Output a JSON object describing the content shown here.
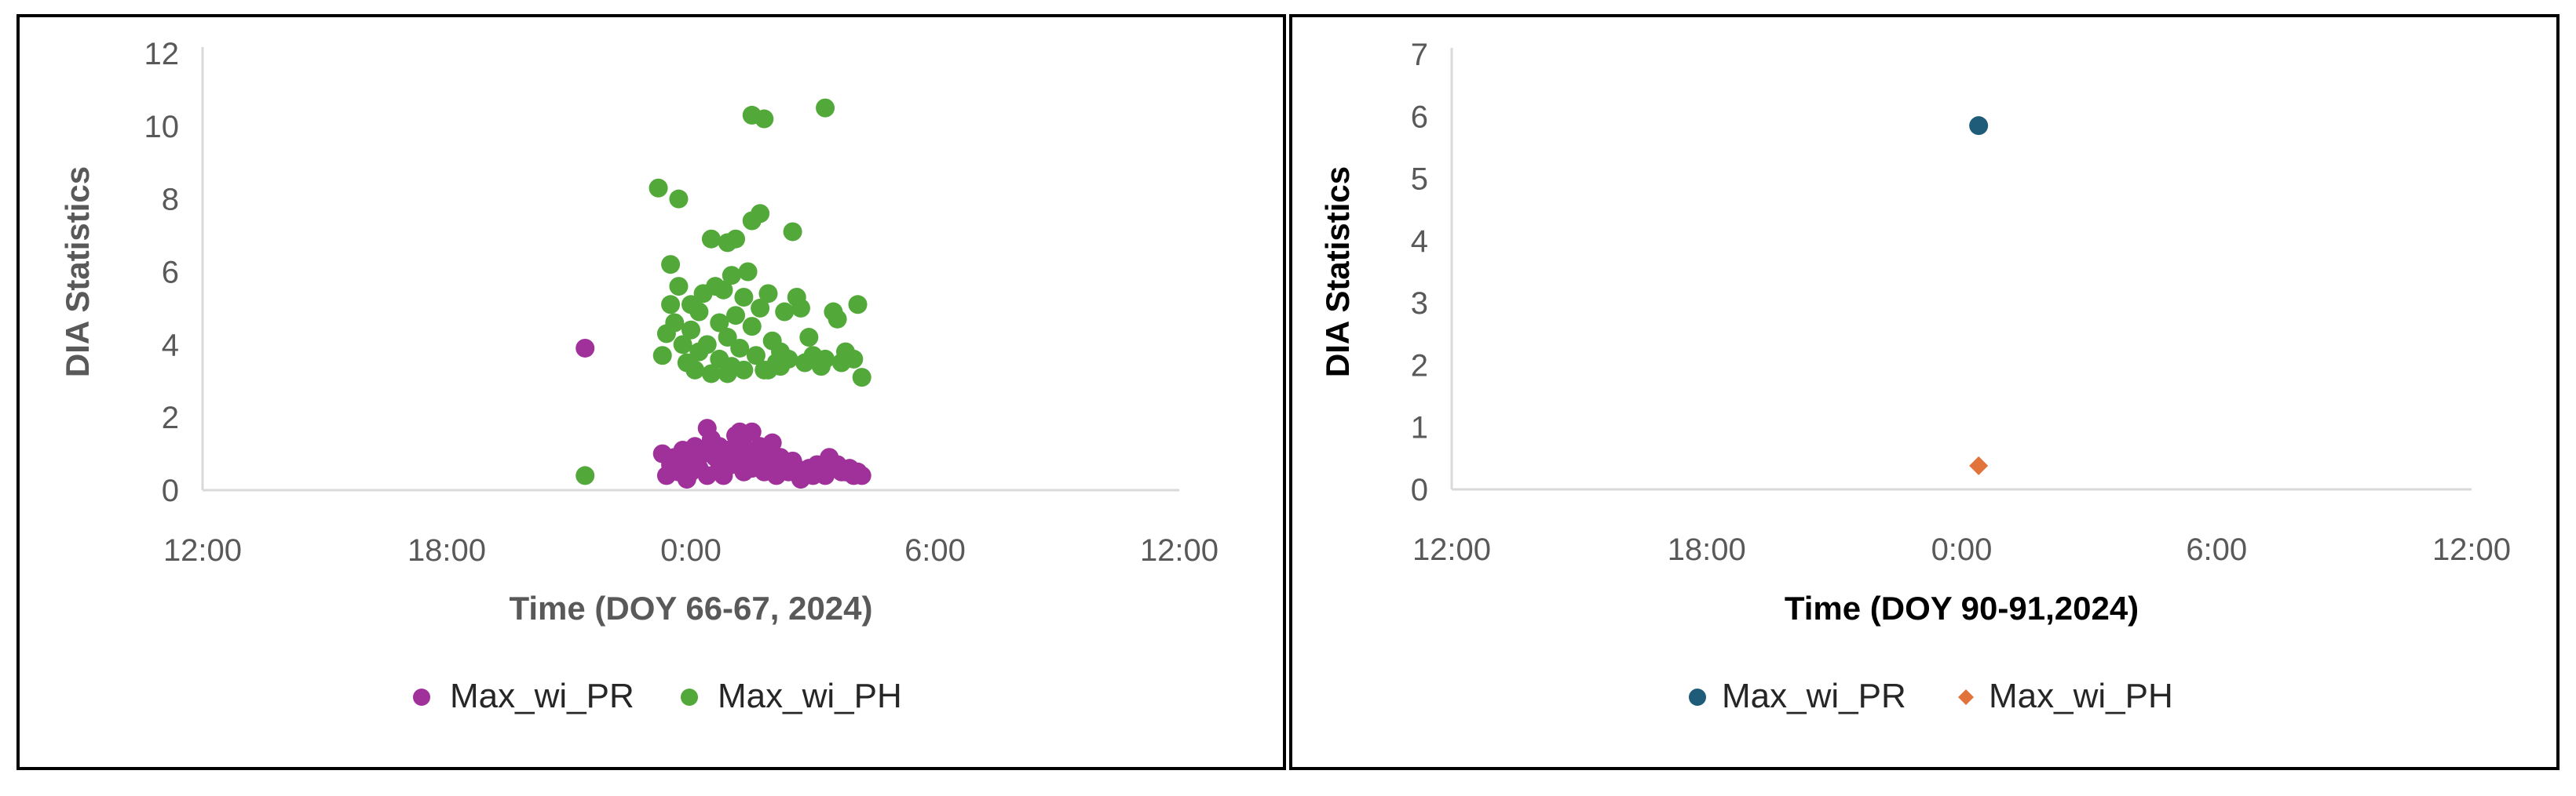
{
  "chart_data": [
    {
      "type": "scatter",
      "title": "",
      "xlabel": "Time (DOY 66-67, 2024)",
      "ylabel": "DIA Statistics",
      "x_unit": "hours relative to 0:00",
      "xlim": [
        -12,
        12
      ],
      "ylim": [
        0,
        12
      ],
      "x_ticks": [
        -12,
        -6,
        0,
        6,
        12
      ],
      "x_tick_labels": [
        "12:00",
        "18:00",
        "0:00",
        "6:00",
        "12:00"
      ],
      "y_ticks": [
        0,
        2,
        4,
        6,
        8,
        10,
        12
      ],
      "y_tick_labels": [
        "0",
        "2",
        "4",
        "6",
        "8",
        "10",
        "12"
      ],
      "grid": false,
      "legend_position": "bottom",
      "axis_title_color": "#595959",
      "series": [
        {
          "name": "Max_wi_PR",
          "color": "#a0309a",
          "marker": "circle",
          "points": [
            [
              -2.6,
              3.9
            ],
            [
              -0.7,
              1.0
            ],
            [
              -0.6,
              0.4
            ],
            [
              -0.5,
              0.7
            ],
            [
              -0.4,
              0.9
            ],
            [
              -0.3,
              0.5
            ],
            [
              -0.2,
              1.1
            ],
            [
              -0.1,
              0.3
            ],
            [
              0.0,
              0.8
            ],
            [
              0.0,
              0.5
            ],
            [
              0.1,
              1.2
            ],
            [
              0.2,
              0.6
            ],
            [
              0.3,
              1.0
            ],
            [
              0.4,
              1.7
            ],
            [
              0.4,
              0.4
            ],
            [
              0.5,
              1.4
            ],
            [
              0.6,
              0.9
            ],
            [
              0.7,
              1.2
            ],
            [
              0.7,
              0.6
            ],
            [
              0.8,
              0.4
            ],
            [
              0.9,
              1.1
            ],
            [
              1.0,
              0.7
            ],
            [
              1.1,
              1.5
            ],
            [
              1.1,
              0.9
            ],
            [
              1.2,
              1.6
            ],
            [
              1.3,
              0.5
            ],
            [
              1.3,
              1.2
            ],
            [
              1.4,
              0.8
            ],
            [
              1.5,
              1.6
            ],
            [
              1.5,
              0.6
            ],
            [
              1.6,
              0.9
            ],
            [
              1.7,
              1.2
            ],
            [
              1.8,
              0.5
            ],
            [
              1.8,
              0.8
            ],
            [
              1.9,
              1.0
            ],
            [
              2.0,
              1.3
            ],
            [
              2.0,
              0.6
            ],
            [
              2.1,
              0.4
            ],
            [
              2.2,
              0.9
            ],
            [
              2.3,
              0.7
            ],
            [
              2.4,
              0.5
            ],
            [
              2.5,
              0.8
            ],
            [
              2.6,
              0.6
            ],
            [
              2.7,
              0.3
            ],
            [
              2.8,
              0.5
            ],
            [
              2.9,
              0.6
            ],
            [
              3.0,
              0.4
            ],
            [
              3.1,
              0.7
            ],
            [
              3.2,
              0.5
            ],
            [
              3.3,
              0.4
            ],
            [
              3.4,
              0.9
            ],
            [
              3.5,
              0.6
            ],
            [
              3.6,
              0.7
            ],
            [
              3.7,
              0.5
            ],
            [
              3.8,
              0.5
            ],
            [
              3.9,
              0.6
            ],
            [
              4.0,
              0.4
            ],
            [
              4.1,
              0.5
            ],
            [
              4.2,
              0.4
            ]
          ]
        },
        {
          "name": "Max_wi_PH",
          "color": "#52a93a",
          "marker": "circle",
          "points": [
            [
              -2.6,
              0.4
            ],
            [
              -0.8,
              8.3
            ],
            [
              -0.3,
              8.0
            ],
            [
              1.5,
              10.3
            ],
            [
              1.8,
              10.2
            ],
            [
              3.3,
              10.5
            ],
            [
              -0.5,
              6.2
            ],
            [
              0.5,
              6.9
            ],
            [
              0.9,
              6.8
            ],
            [
              1.1,
              6.9
            ],
            [
              1.5,
              7.4
            ],
            [
              1.7,
              7.6
            ],
            [
              2.5,
              7.1
            ],
            [
              -0.6,
              4.3
            ],
            [
              -0.5,
              5.1
            ],
            [
              -0.4,
              4.6
            ],
            [
              -0.3,
              5.6
            ],
            [
              -0.2,
              4.0
            ],
            [
              -0.1,
              3.5
            ],
            [
              0.0,
              5.1
            ],
            [
              0.0,
              4.4
            ],
            [
              0.1,
              3.3
            ],
            [
              0.2,
              4.9
            ],
            [
              0.3,
              5.4
            ],
            [
              0.4,
              4.0
            ],
            [
              0.5,
              3.2
            ],
            [
              0.6,
              5.6
            ],
            [
              0.7,
              4.6
            ],
            [
              0.7,
              3.6
            ],
            [
              0.8,
              5.5
            ],
            [
              0.9,
              4.2
            ],
            [
              1.0,
              3.4
            ],
            [
              1.0,
              5.9
            ],
            [
              1.1,
              4.8
            ],
            [
              1.2,
              3.9
            ],
            [
              1.3,
              5.3
            ],
            [
              1.3,
              3.3
            ],
            [
              1.4,
              6.0
            ],
            [
              1.5,
              4.5
            ],
            [
              1.6,
              3.7
            ],
            [
              1.7,
              5.0
            ],
            [
              1.8,
              3.3
            ],
            [
              1.9,
              5.4
            ],
            [
              2.0,
              4.1
            ],
            [
              2.1,
              3.5
            ],
            [
              2.2,
              3.8
            ],
            [
              2.3,
              4.9
            ],
            [
              2.4,
              3.6
            ],
            [
              2.6,
              5.3
            ],
            [
              2.7,
              5.0
            ],
            [
              2.8,
              3.5
            ],
            [
              2.9,
              4.2
            ],
            [
              3.0,
              3.7
            ],
            [
              3.2,
              3.4
            ],
            [
              3.3,
              3.6
            ],
            [
              3.5,
              4.9
            ],
            [
              3.6,
              4.7
            ],
            [
              3.7,
              3.5
            ],
            [
              3.8,
              3.8
            ],
            [
              4.0,
              3.6
            ],
            [
              4.1,
              5.1
            ],
            [
              4.2,
              3.1
            ],
            [
              -0.7,
              3.7
            ],
            [
              0.2,
              3.8
            ],
            [
              0.9,
              3.2
            ],
            [
              1.9,
              3.3
            ],
            [
              2.2,
              3.4
            ]
          ]
        }
      ]
    },
    {
      "type": "scatter",
      "title": "",
      "xlabel": "Time (DOY 90-91,2024)",
      "ylabel": "DIA Statistics",
      "x_unit": "hours relative to 0:00",
      "xlim": [
        -12,
        12
      ],
      "ylim": [
        0,
        7
      ],
      "x_ticks": [
        -12,
        -6,
        0,
        6,
        12
      ],
      "x_tick_labels": [
        "12:00",
        "18:00",
        "0:00",
        "6:00",
        "12:00"
      ],
      "y_ticks": [
        0,
        1,
        2,
        3,
        4,
        5,
        6,
        7
      ],
      "y_tick_labels": [
        "0",
        "1",
        "2",
        "3",
        "4",
        "5",
        "6",
        "7"
      ],
      "grid": false,
      "legend_position": "bottom",
      "axis_title_color": "#000000",
      "series": [
        {
          "name": "Max_wi_PR",
          "color": "#1f5c7a",
          "marker": "circle",
          "points": [
            [
              0.4,
              5.85
            ]
          ]
        },
        {
          "name": "Max_wi_PH",
          "color": "#e2733a",
          "marker": "diamond",
          "points": [
            [
              0.4,
              0.38
            ]
          ]
        }
      ]
    }
  ]
}
